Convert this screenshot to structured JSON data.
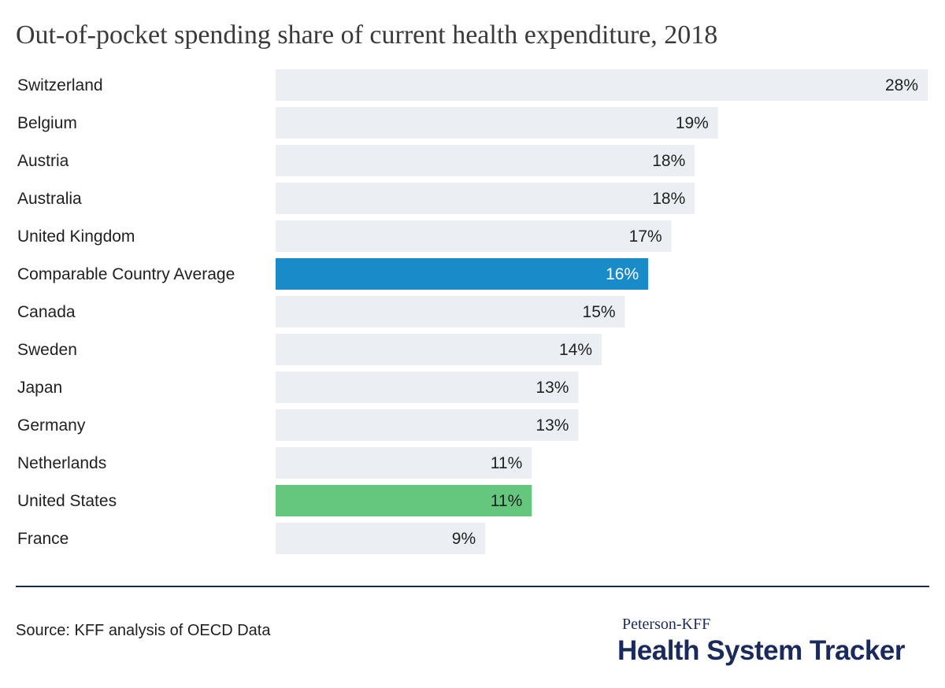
{
  "header": {
    "title": "Out-of-pocket spending share of current health expenditure, 2018"
  },
  "chart_data": {
    "type": "bar",
    "orientation": "horizontal",
    "title": "Out-of-pocket spending share of current health expenditure, 2018",
    "xlabel": "",
    "ylabel": "",
    "xlim": [
      0,
      28
    ],
    "grid": false,
    "categories": [
      "Switzerland",
      "Belgium",
      "Austria",
      "Australia",
      "United Kingdom",
      "Comparable Country Average",
      "Canada",
      "Sweden",
      "Japan",
      "Germany",
      "Netherlands",
      "United States",
      "France"
    ],
    "values": [
      28,
      19,
      18,
      18,
      17,
      16,
      15,
      14,
      13,
      13,
      11,
      11,
      9
    ],
    "value_labels": [
      "28%",
      "19%",
      "18%",
      "18%",
      "17%",
      "16%",
      "15%",
      "14%",
      "13%",
      "13%",
      "11%",
      "11%",
      "9%"
    ],
    "colors": {
      "default_bar": "#ebeff3",
      "average_bar": "#1a8bc9",
      "united_states_bar": "#65c67e",
      "default_label": "#222222",
      "average_label": "#ffffff"
    },
    "highlight": {
      "Comparable Country Average": "average",
      "United States": "united_states"
    }
  },
  "footer": {
    "source": "Source: KFF analysis of OECD Data",
    "brand_sub": "Peterson-KFF",
    "brand_main": "Health System Tracker"
  }
}
